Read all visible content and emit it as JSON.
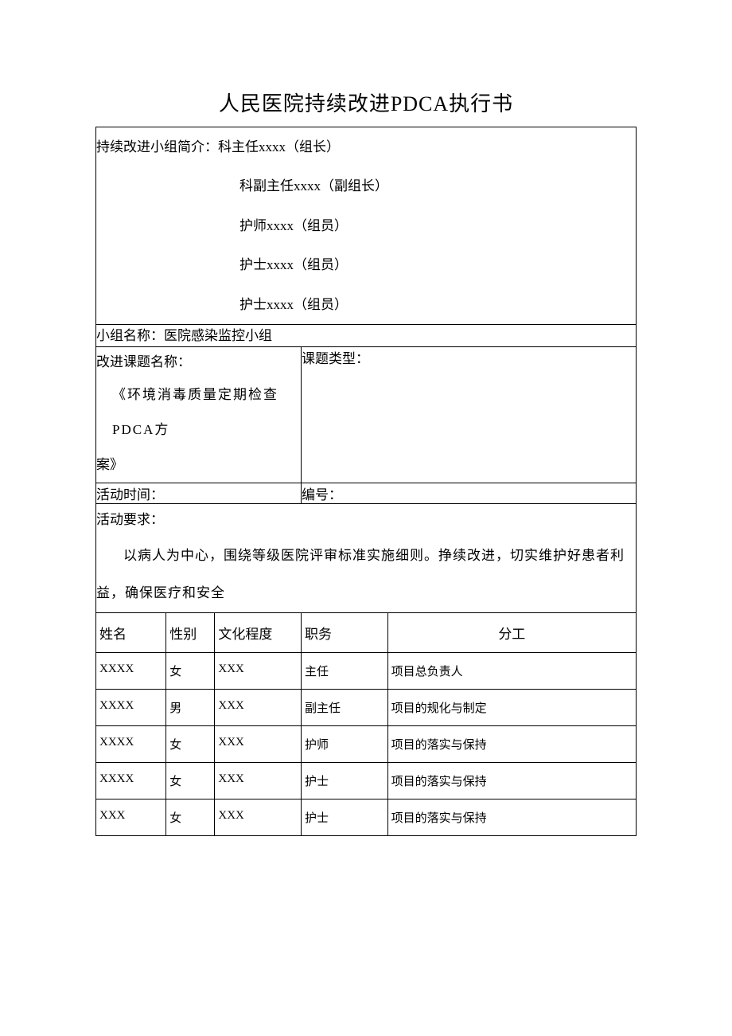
{
  "title": "人民医院持续改进PDCA执行书",
  "intro": {
    "label": "持续改进小组简介：",
    "lines": [
      "科主任xxxx（组长）",
      "科副主任xxxx（副组长）",
      "护师xxxx（组员）",
      "护士xxxx（组员）",
      "护士xxxx（组员）"
    ]
  },
  "group_name": {
    "label": "小组名称：",
    "value": "医院感染监控小组"
  },
  "topic": {
    "label": "改进课题名称：",
    "content_line1": "《环境消毒质量定期检查PDCA方",
    "content_line2": "案》"
  },
  "topic_type": {
    "label": "课题类型："
  },
  "activity_time": {
    "label": "活动时间："
  },
  "serial": {
    "label": "编号："
  },
  "requirements": {
    "label": "活动要求：",
    "body": "以病人为中心，围绕等级医院评审标准实施细则。挣续改进，切实维护好患者利益，确保医疗和安全"
  },
  "member_table": {
    "headers": {
      "name": "姓名",
      "gender": "性别",
      "education": "文化程度",
      "position": "职务",
      "role": "分工"
    },
    "rows": [
      {
        "name": "XXXX",
        "gender": "女",
        "education": "XXX",
        "position": "主任",
        "role": "项目总负责人"
      },
      {
        "name": "XXXX",
        "gender": "男",
        "education": "XXX",
        "position": "副主任",
        "role": "项目的规化与制定"
      },
      {
        "name": "XXXX",
        "gender": "女",
        "education": "XXX",
        "position": "护师",
        "role": "项目的落实与保持"
      },
      {
        "name": "XXXX",
        "gender": "女",
        "education": "XXX",
        "position": "护士",
        "role": "项目的落实与保持"
      },
      {
        "name": "XXX",
        "gender": "女",
        "education": "XXX",
        "position": "护士",
        "role": "项目的落实与保持"
      }
    ]
  },
  "colors": {
    "text": "#000000",
    "border": "#000000",
    "background": "#ffffff"
  },
  "typography": {
    "title_fontsize": 26,
    "body_fontsize": 17,
    "small_fontsize": 15,
    "font_family": "SimSun"
  }
}
